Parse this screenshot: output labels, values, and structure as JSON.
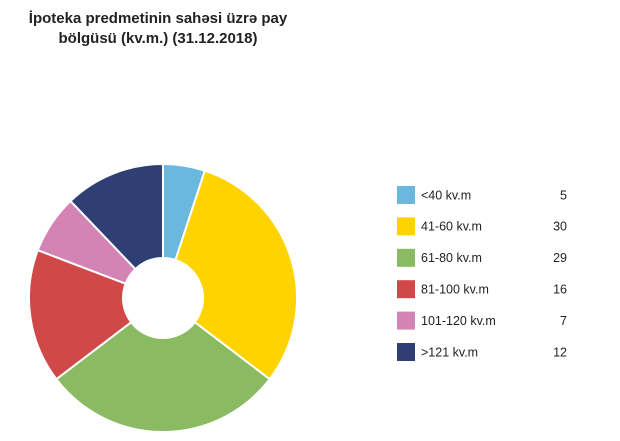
{
  "chart_data": {
    "type": "donut",
    "title": [
      "İpoteka predmetinin sahəsi üzrə pay",
      "bölgüsü (kv.m.) (31.12.2018)"
    ],
    "categories": [
      "<40 kv.m",
      "41-60 kv.m",
      "61-80 kv.m",
      "81-100 kv.m",
      "101-120 kv.m",
      ">121 kv.m"
    ],
    "values": [
      5,
      30,
      29,
      16,
      7,
      12
    ],
    "colors": [
      "#6ab8de",
      "#ffd300",
      "#8aba62",
      "#d04848",
      "#d384b5",
      "#2f3f74"
    ],
    "legend": "right"
  }
}
